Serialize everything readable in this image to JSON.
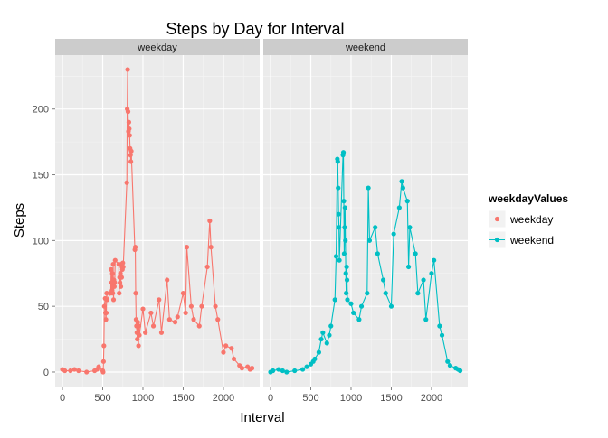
{
  "chart_data": {
    "type": "line",
    "title": "Steps by Day for Interval",
    "xlabel": "Interval",
    "ylabel": "Steps",
    "xlim": [
      -90,
      2450
    ],
    "ylim": [
      -11,
      241
    ],
    "x_ticks": [
      0,
      500,
      1000,
      1500,
      2000
    ],
    "y_ticks": [
      0,
      50,
      100,
      150,
      200
    ],
    "grid": true,
    "legend": {
      "title": "weekdayValues",
      "placement": "right",
      "entries": [
        "weekday",
        "weekend"
      ]
    },
    "panels": [
      {
        "name": "weekday",
        "color": "#f8766d",
        "x": [
          0,
          30,
          100,
          150,
          200,
          300,
          400,
          430,
          450,
          500,
          505,
          510,
          515,
          520,
          530,
          535,
          540,
          545,
          550,
          555,
          600,
          605,
          610,
          615,
          620,
          625,
          630,
          635,
          640,
          645,
          650,
          655,
          700,
          705,
          710,
          715,
          720,
          725,
          730,
          735,
          740,
          745,
          750,
          755,
          800,
          805,
          810,
          815,
          820,
          825,
          830,
          835,
          840,
          845,
          850,
          855,
          900,
          905,
          910,
          915,
          920,
          925,
          930,
          935,
          940,
          945,
          950,
          955,
          1000,
          1030,
          1100,
          1130,
          1200,
          1230,
          1300,
          1330,
          1400,
          1430,
          1500,
          1530,
          1545,
          1600,
          1630,
          1700,
          1730,
          1800,
          1830,
          1845,
          1900,
          1930,
          2000,
          2030,
          2100,
          2130,
          2200,
          2230,
          2300,
          2330,
          2355
        ],
        "y": [
          2,
          1,
          1,
          2,
          1,
          0,
          1,
          2,
          4,
          1,
          0,
          8,
          20,
          50,
          56,
          45,
          40,
          45,
          60,
          55,
          60,
          78,
          68,
          62,
          75,
          60,
          82,
          55,
          70,
          65,
          68,
          85,
          82,
          60,
          72,
          68,
          75,
          65,
          82,
          72,
          80,
          78,
          83,
          80,
          144,
          200,
          230,
          198,
          183,
          190,
          185,
          180,
          170,
          165,
          160,
          168,
          93,
          95,
          60,
          40,
          35,
          30,
          25,
          38,
          30,
          20,
          35,
          28,
          48,
          30,
          45,
          35,
          55,
          30,
          70,
          40,
          38,
          42,
          60,
          45,
          95,
          50,
          40,
          35,
          50,
          80,
          115,
          95,
          50,
          40,
          15,
          20,
          18,
          10,
          5,
          3,
          4,
          2,
          3
        ]
      },
      {
        "name": "weekend",
        "color": "#00bfc4",
        "x": [
          0,
          30,
          100,
          150,
          200,
          300,
          400,
          450,
          500,
          530,
          550,
          600,
          630,
          650,
          700,
          730,
          750,
          800,
          815,
          830,
          835,
          840,
          845,
          850,
          855,
          900,
          905,
          910,
          915,
          920,
          925,
          930,
          935,
          940,
          945,
          950,
          955,
          1000,
          1030,
          1100,
          1130,
          1200,
          1215,
          1230,
          1300,
          1330,
          1400,
          1430,
          1500,
          1530,
          1600,
          1630,
          1645,
          1700,
          1715,
          1730,
          1800,
          1830,
          1900,
          1930,
          2000,
          2030,
          2100,
          2130,
          2200,
          2230,
          2300,
          2330,
          2355
        ],
        "y": [
          0,
          1,
          2,
          1,
          0,
          1,
          2,
          4,
          6,
          8,
          10,
          15,
          25,
          30,
          22,
          28,
          35,
          55,
          88,
          162,
          160,
          140,
          120,
          110,
          85,
          165,
          167,
          130,
          90,
          110,
          125,
          100,
          75,
          60,
          80,
          70,
          55,
          52,
          45,
          40,
          50,
          60,
          140,
          100,
          110,
          90,
          70,
          60,
          50,
          105,
          125,
          145,
          140,
          130,
          80,
          110,
          90,
          60,
          70,
          40,
          75,
          85,
          35,
          28,
          8,
          5,
          3,
          2,
          1
        ]
      }
    ]
  }
}
